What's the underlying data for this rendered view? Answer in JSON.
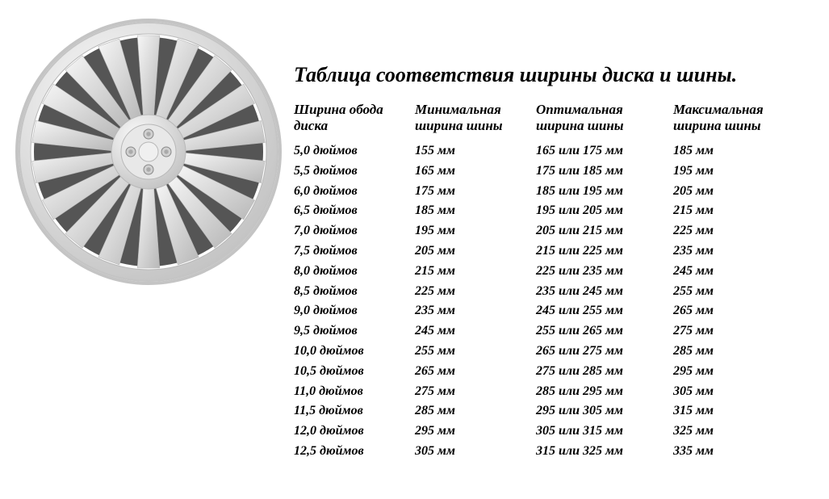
{
  "title": "Таблица соответствия ширины диска и шины.",
  "headers": {
    "rim_width": "Ширина обода диска",
    "min_tire": "Минимальная ширина шины",
    "opt_tire": "Оптимальная ширина шины",
    "max_tire": "Максимальная ширина шины"
  },
  "rows": [
    {
      "rim": "5,0 дюймов",
      "min": "155 мм",
      "opt": "165 или 175 мм",
      "max": "185 мм"
    },
    {
      "rim": "5,5 дюймов",
      "min": "165 мм",
      "opt": "175 или 185 мм",
      "max": "195 мм"
    },
    {
      "rim": "6,0 дюймов",
      "min": "175 мм",
      "opt": "185 или 195 мм",
      "max": "205 мм"
    },
    {
      "rim": "6,5 дюймов",
      "min": "185 мм",
      "opt": "195 или 205 мм",
      "max": "215 мм"
    },
    {
      "rim": "7,0 дюймов",
      "min": "195 мм",
      "opt": "205 или 215 мм",
      "max": "225 мм"
    },
    {
      "rim": "7,5 дюймов",
      "min": "205 мм",
      "opt": "215 или 225 мм",
      "max": "235 мм"
    },
    {
      "rim": "8,0 дюймов",
      "min": "215 мм",
      "opt": "225 или 235 мм",
      "max": "245 мм"
    },
    {
      "rim": "8,5 дюймов",
      "min": "225 мм",
      "opt": "235 или 245 мм",
      "max": "255 мм"
    },
    {
      "rim": "9,0 дюймов",
      "min": "235 мм",
      "opt": "245 или 255 мм",
      "max": "265 мм"
    },
    {
      "rim": "9,5 дюймов",
      "min": "245 мм",
      "opt": "255 или 265 мм",
      "max": "275 мм"
    },
    {
      "rim": "10,0 дюймов",
      "min": "255 мм",
      "opt": "265 или 275 мм",
      "max": "285 мм"
    },
    {
      "rim": "10,5 дюймов",
      "min": "265 мм",
      "opt": "275 или 285 мм",
      "max": "295 мм"
    },
    {
      "rim": "11,0 дюймов",
      "min": "275 мм",
      "opt": "285 или 295 мм",
      "max": "305 мм"
    },
    {
      "rim": "11,5 дюймов",
      "min": "285 мм",
      "opt": "295 или 305 мм",
      "max": "315 мм"
    },
    {
      "rim": "12,0 дюймов",
      "min": "295 мм",
      "opt": "305 или 315 мм",
      "max": "325 мм"
    },
    {
      "rim": "12,5 дюймов",
      "min": " 305 мм",
      "opt": "315 или 325 мм",
      "max": "335 мм"
    }
  ],
  "wheel": {
    "spoke_count": 18,
    "outer_radius": 160,
    "inner_hub_radius": 40,
    "rim_color_light": "#fafafa",
    "rim_color_dark": "#c4c4c4",
    "spoke_light": "#f6f6f6",
    "spoke_dark": "#b8b8b8",
    "hub_color": "#e8e8e8",
    "tire_shadow": "#8a8a8a",
    "bolt_count": 4,
    "bolt_radius": 22,
    "bolt_size": 6,
    "bolt_color": "#d0d0d0"
  }
}
